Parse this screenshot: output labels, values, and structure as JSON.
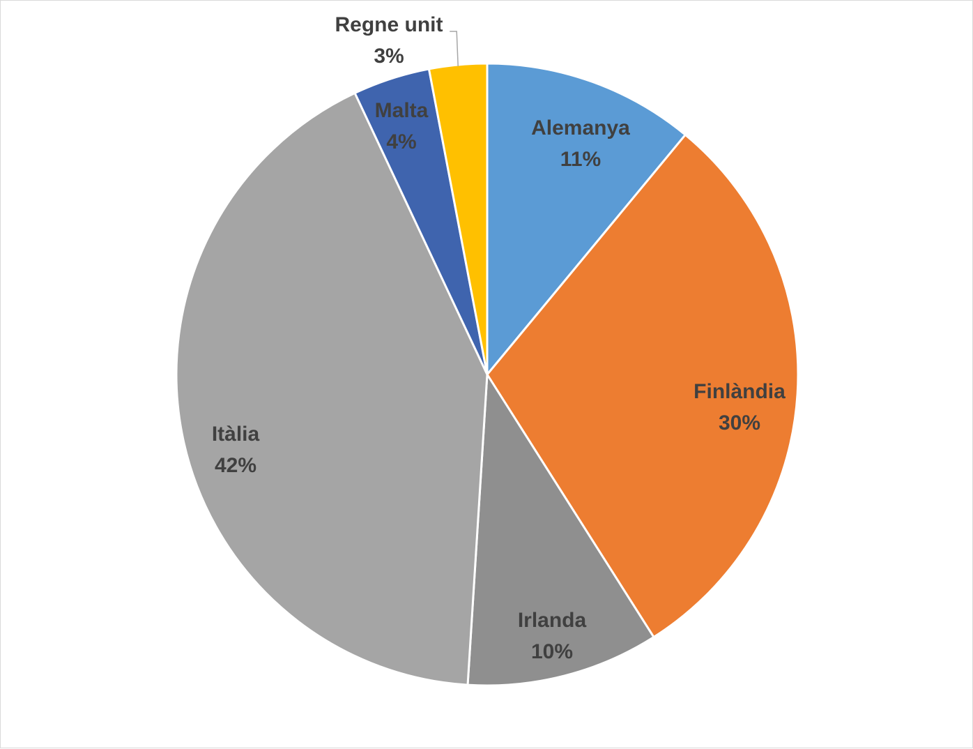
{
  "chart_data": {
    "type": "pie",
    "title": "",
    "start_angle_deg": 0,
    "direction": "clockwise",
    "slices": [
      {
        "label": "Alemanya",
        "value": 11,
        "value_label": "11%",
        "color": "#5B9BD5"
      },
      {
        "label": "Finlàndia",
        "value": 30,
        "value_label": "30%",
        "color": "#ED7D31"
      },
      {
        "label": "Irlanda",
        "value": 10,
        "value_label": "10%",
        "color": "#8F8F8F"
      },
      {
        "label": "Itàlia",
        "value": 42,
        "value_label": "42%",
        "color": "#A5A5A5"
      },
      {
        "label": "Malta",
        "value": 4,
        "value_label": "4%",
        "color": "#3F64AE"
      },
      {
        "label": "Regne unit",
        "value": 3,
        "value_label": "3%",
        "color": "#FFC000"
      }
    ],
    "legend": "none",
    "data_labels": "category and percentage"
  }
}
